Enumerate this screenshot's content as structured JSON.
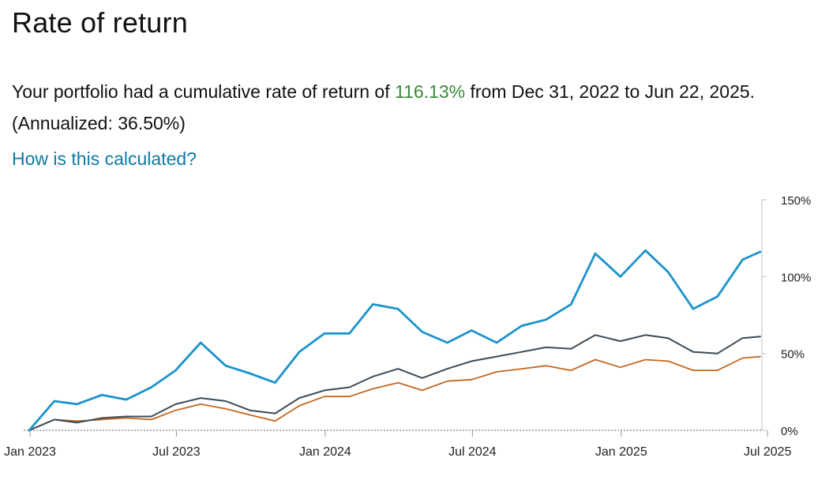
{
  "page": {
    "title": "Rate of return",
    "summary_prefix": "Your portfolio had a cumulative rate of return of ",
    "return_value": "116.13%",
    "summary_middle": " from Dec 31, 2022 to Jun 22, 2025. (Annualized: 36.50%)",
    "help_link": "How is this calculated?"
  },
  "colors": {
    "portfolio": "#1a93cc",
    "benchmark_dark": "#3d4a55",
    "benchmark_orange": "#c4661d",
    "axis": "#b8c2cc",
    "zero_line": "#8a96a6",
    "tick_text": "#222222",
    "positive_text": "#3a8a3a",
    "link": "#0f7aa6"
  },
  "chart_data": {
    "type": "line",
    "title": "",
    "xlabel": "",
    "ylabel": "",
    "x": [
      "2022-12-31",
      "2023-01-31",
      "2023-02-28",
      "2023-03-31",
      "2023-04-30",
      "2023-05-31",
      "2023-06-30",
      "2023-07-31",
      "2023-08-31",
      "2023-09-30",
      "2023-10-31",
      "2023-11-30",
      "2023-12-31",
      "2024-01-31",
      "2024-02-29",
      "2024-03-31",
      "2024-04-30",
      "2024-05-31",
      "2024-06-30",
      "2024-07-31",
      "2024-08-31",
      "2024-09-30",
      "2024-10-31",
      "2024-11-30",
      "2024-12-31",
      "2025-01-31",
      "2025-02-28",
      "2025-03-31",
      "2025-04-30",
      "2025-05-31",
      "2025-06-22"
    ],
    "x_ticks": [
      {
        "date": "2023-01-01",
        "label": "Jan 2023"
      },
      {
        "date": "2023-07-01",
        "label": "Jul 2023"
      },
      {
        "date": "2024-01-01",
        "label": "Jan 2024"
      },
      {
        "date": "2024-07-01",
        "label": "Jul 2024"
      },
      {
        "date": "2025-01-01",
        "label": "Jan 2025"
      },
      {
        "date": "2025-07-01",
        "label": "Jul 2025"
      }
    ],
    "y_ticks": [
      {
        "value": 0,
        "label": "0%"
      },
      {
        "value": 50,
        "label": "50%"
      },
      {
        "value": 100,
        "label": "100%"
      },
      {
        "value": 150,
        "label": "150%"
      }
    ],
    "ylim": [
      0,
      150
    ],
    "grid": false,
    "legend": "none",
    "series": [
      {
        "color_key": "portfolio",
        "values": [
          0,
          19,
          17,
          23,
          20,
          28,
          39,
          57,
          42,
          37,
          31,
          51,
          63,
          63,
          82,
          79,
          64,
          57,
          65,
          57,
          68,
          72,
          82,
          115,
          100,
          117,
          103,
          79,
          87,
          111,
          116.13
        ]
      },
      {
        "color_key": "benchmark_dark",
        "values": [
          0,
          7,
          5,
          8,
          9,
          9,
          17,
          21,
          19,
          13,
          11,
          21,
          26,
          28,
          35,
          40,
          34,
          40,
          45,
          48,
          51,
          54,
          53,
          62,
          58,
          62,
          60,
          51,
          50,
          60,
          61
        ]
      },
      {
        "color_key": "benchmark_orange",
        "values": [
          0,
          7,
          6,
          7,
          8,
          7,
          13,
          17,
          14,
          10,
          6,
          16,
          22,
          22,
          27,
          31,
          26,
          32,
          33,
          38,
          40,
          42,
          39,
          46,
          41,
          46,
          45,
          39,
          39,
          47,
          48
        ]
      }
    ]
  }
}
